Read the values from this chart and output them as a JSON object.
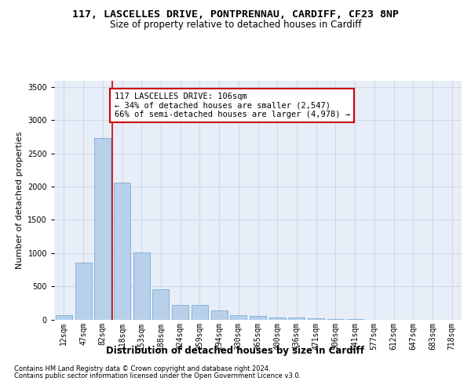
{
  "title_line1": "117, LASCELLES DRIVE, PONTPRENNAU, CARDIFF, CF23 8NP",
  "title_line2": "Size of property relative to detached houses in Cardiff",
  "xlabel": "Distribution of detached houses by size in Cardiff",
  "ylabel": "Number of detached properties",
  "bar_labels": [
    "12sqm",
    "47sqm",
    "82sqm",
    "118sqm",
    "153sqm",
    "188sqm",
    "224sqm",
    "259sqm",
    "294sqm",
    "330sqm",
    "365sqm",
    "400sqm",
    "436sqm",
    "471sqm",
    "506sqm",
    "541sqm",
    "577sqm",
    "612sqm",
    "647sqm",
    "683sqm",
    "718sqm"
  ],
  "bar_values": [
    60,
    850,
    2730,
    2060,
    1005,
    460,
    220,
    215,
    130,
    65,
    55,
    30,
    25,
    15,
    5,
    5,
    0,
    0,
    0,
    0,
    0
  ],
  "bar_color": "#b8d0ea",
  "bar_edge_color": "#7aadd4",
  "vline_color": "#cc0000",
  "vline_pos": 2.5,
  "annotation_text": "117 LASCELLES DRIVE: 106sqm\n← 34% of detached houses are smaller (2,547)\n66% of semi-detached houses are larger (4,978) →",
  "annotation_box_edgecolor": "#cc0000",
  "annotation_box_facecolor": "#ffffff",
  "ylim": [
    0,
    3600
  ],
  "yticks": [
    0,
    500,
    1000,
    1500,
    2000,
    2500,
    3000,
    3500
  ],
  "grid_color": "#d0d8e8",
  "bg_color": "#e8eef8",
  "footer_line1": "Contains HM Land Registry data © Crown copyright and database right 2024.",
  "footer_line2": "Contains public sector information licensed under the Open Government Licence v3.0.",
  "title_fontsize": 9.5,
  "subtitle_fontsize": 8.5,
  "tick_fontsize": 7,
  "ylabel_fontsize": 8,
  "xlabel_fontsize": 8.5,
  "annotation_fontsize": 7.5,
  "footer_fontsize": 6
}
